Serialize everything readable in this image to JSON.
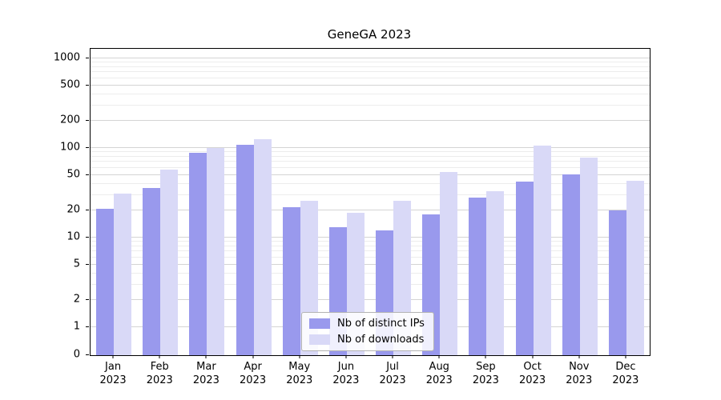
{
  "chart_data": {
    "type": "bar",
    "title": "GeneGA 2023",
    "categories": [
      "Jan",
      "Feb",
      "Mar",
      "Apr",
      "May",
      "Jun",
      "Jul",
      "Aug",
      "Sep",
      "Oct",
      "Nov",
      "Dec"
    ],
    "year_label": "2023",
    "series": [
      {
        "name": "Nb of distinct IPs",
        "color": "#9999ed",
        "values": [
          21,
          36,
          88,
          108,
          22,
          13,
          12,
          18,
          28,
          42,
          51,
          20
        ]
      },
      {
        "name": "Nb of downloads",
        "color": "#d9d9f7",
        "values": [
          31,
          57,
          100,
          125,
          26,
          19,
          26,
          54,
          33,
          107,
          78,
          43
        ]
      }
    ],
    "y_ticks": [
      0,
      1,
      2,
      5,
      10,
      20,
      50,
      100,
      200,
      500,
      1000
    ],
    "scale": "symlog",
    "ylim": [
      0,
      1280
    ],
    "xlabel": "",
    "ylabel": "",
    "grid": true,
    "legend_position": "lower center"
  }
}
